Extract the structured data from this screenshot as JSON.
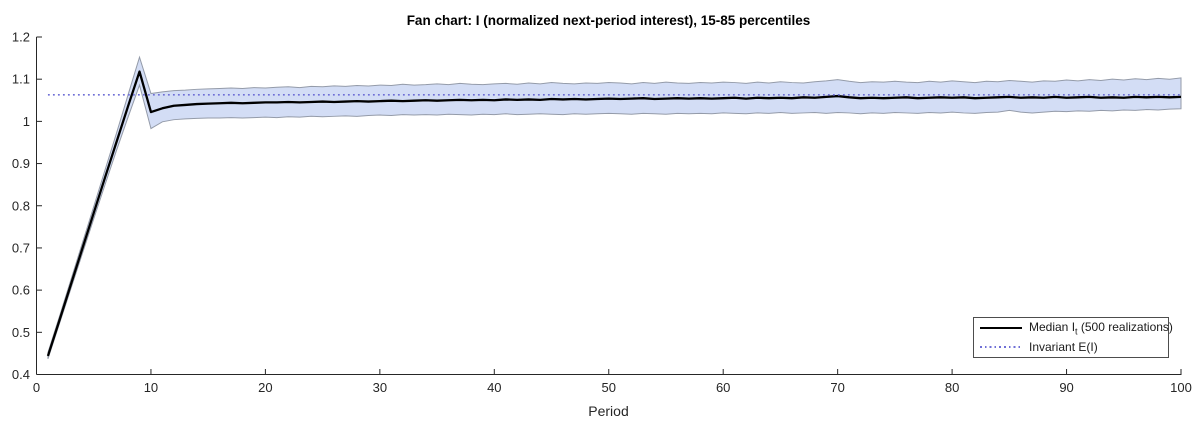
{
  "title": "Fan chart: I (normalized next-period interest), 15-85 percentiles",
  "xlabel": "Period",
  "legend": {
    "median_prefix": "Median I",
    "median_sub": "t",
    "median_suffix": " (500 realizations)",
    "invariant": "Invariant E(I)"
  },
  "colors": {
    "band_fill": "#d3ddf5",
    "band_edge": "#949ba9",
    "median": "#000000",
    "invariant": "#6f6fd6",
    "axis": "#262626",
    "tick_text": "#262626"
  },
  "chart_data": {
    "type": "line",
    "title": "Fan chart: I (normalized next-period interest), 15-85 percentiles",
    "xlabel": "Period",
    "ylabel": "",
    "xlim": [
      0,
      100
    ],
    "ylim": [
      0.4,
      1.2
    ],
    "x_ticks": [
      0,
      10,
      20,
      30,
      40,
      50,
      60,
      70,
      80,
      90,
      100
    ],
    "y_ticks": [
      0.4,
      0.5,
      0.6,
      0.7,
      0.8,
      0.9,
      1.0,
      1.1,
      1.2
    ],
    "y_tick_labels": [
      "0.4",
      "0.5",
      "0.6",
      "0.7",
      "0.8",
      "0.9",
      "1",
      "1.1",
      "1.2"
    ],
    "grid": false,
    "legend_position": "lower right",
    "invariant_EI": 1.063,
    "x": [
      1,
      2,
      3,
      4,
      5,
      6,
      7,
      8,
      9,
      10,
      11,
      12,
      13,
      14,
      15,
      16,
      17,
      18,
      19,
      20,
      21,
      22,
      23,
      24,
      25,
      26,
      27,
      28,
      29,
      30,
      31,
      32,
      33,
      34,
      35,
      36,
      37,
      38,
      39,
      40,
      41,
      42,
      43,
      44,
      45,
      46,
      47,
      48,
      49,
      50,
      51,
      52,
      53,
      54,
      55,
      56,
      57,
      58,
      59,
      60,
      61,
      62,
      63,
      64,
      65,
      66,
      67,
      68,
      69,
      70,
      71,
      72,
      73,
      74,
      75,
      76,
      77,
      78,
      79,
      80,
      81,
      82,
      83,
      84,
      85,
      86,
      87,
      88,
      89,
      90,
      91,
      92,
      93,
      94,
      95,
      96,
      97,
      98,
      99,
      100
    ],
    "series": [
      {
        "name": "Median I_t (500 realizations)",
        "values": [
          0.444,
          0.528,
          0.613,
          0.698,
          0.783,
          0.868,
          0.952,
          1.036,
          1.118,
          1.022,
          1.031,
          1.037,
          1.039,
          1.041,
          1.042,
          1.043,
          1.044,
          1.043,
          1.044,
          1.045,
          1.045,
          1.046,
          1.045,
          1.046,
          1.047,
          1.046,
          1.047,
          1.048,
          1.047,
          1.048,
          1.049,
          1.048,
          1.049,
          1.05,
          1.049,
          1.05,
          1.051,
          1.05,
          1.051,
          1.05,
          1.052,
          1.051,
          1.052,
          1.051,
          1.053,
          1.052,
          1.053,
          1.052,
          1.053,
          1.054,
          1.053,
          1.054,
          1.055,
          1.053,
          1.054,
          1.055,
          1.054,
          1.055,
          1.054,
          1.055,
          1.056,
          1.054,
          1.056,
          1.055,
          1.056,
          1.055,
          1.057,
          1.056,
          1.058,
          1.06,
          1.057,
          1.055,
          1.056,
          1.055,
          1.056,
          1.057,
          1.055,
          1.056,
          1.057,
          1.056,
          1.057,
          1.055,
          1.056,
          1.057,
          1.058,
          1.056,
          1.057,
          1.056,
          1.058,
          1.056,
          1.057,
          1.058,
          1.056,
          1.057,
          1.056,
          1.058,
          1.057,
          1.058,
          1.057,
          1.058
        ]
      },
      {
        "name": "15th percentile",
        "values": [
          0.437,
          0.52,
          0.603,
          0.686,
          0.769,
          0.851,
          0.932,
          1.01,
          1.086,
          0.983,
          0.999,
          1.004,
          1.006,
          1.007,
          1.008,
          1.008,
          1.009,
          1.008,
          1.009,
          1.01,
          1.009,
          1.011,
          1.01,
          1.012,
          1.011,
          1.012,
          1.013,
          1.012,
          1.014,
          1.015,
          1.014,
          1.016,
          1.015,
          1.016,
          1.015,
          1.017,
          1.016,
          1.015,
          1.017,
          1.016,
          1.018,
          1.016,
          1.017,
          1.018,
          1.017,
          1.016,
          1.018,
          1.017,
          1.018,
          1.019,
          1.018,
          1.017,
          1.019,
          1.018,
          1.017,
          1.019,
          1.018,
          1.019,
          1.018,
          1.02,
          1.019,
          1.018,
          1.02,
          1.019,
          1.021,
          1.019,
          1.02,
          1.021,
          1.019,
          1.021,
          1.02,
          1.018,
          1.02,
          1.019,
          1.021,
          1.02,
          1.019,
          1.021,
          1.02,
          1.022,
          1.02,
          1.019,
          1.021,
          1.022,
          1.026,
          1.022,
          1.02,
          1.022,
          1.024,
          1.023,
          1.025,
          1.024,
          1.026,
          1.025,
          1.027,
          1.026,
          1.028,
          1.027,
          1.029,
          1.03
        ]
      },
      {
        "name": "85th percentile",
        "values": [
          0.452,
          0.537,
          0.624,
          0.711,
          0.798,
          0.886,
          0.973,
          1.063,
          1.152,
          1.066,
          1.07,
          1.073,
          1.074,
          1.076,
          1.077,
          1.078,
          1.079,
          1.078,
          1.08,
          1.079,
          1.081,
          1.082,
          1.08,
          1.083,
          1.082,
          1.084,
          1.083,
          1.085,
          1.084,
          1.086,
          1.085,
          1.088,
          1.086,
          1.087,
          1.089,
          1.087,
          1.09,
          1.088,
          1.087,
          1.089,
          1.09,
          1.088,
          1.091,
          1.089,
          1.092,
          1.09,
          1.089,
          1.091,
          1.09,
          1.092,
          1.091,
          1.089,
          1.092,
          1.09,
          1.093,
          1.091,
          1.09,
          1.092,
          1.091,
          1.093,
          1.092,
          1.09,
          1.093,
          1.091,
          1.094,
          1.092,
          1.091,
          1.094,
          1.096,
          1.099,
          1.095,
          1.092,
          1.094,
          1.093,
          1.095,
          1.093,
          1.092,
          1.095,
          1.093,
          1.096,
          1.094,
          1.092,
          1.095,
          1.094,
          1.097,
          1.095,
          1.093,
          1.096,
          1.095,
          1.098,
          1.096,
          1.099,
          1.097,
          1.1,
          1.098,
          1.101,
          1.099,
          1.102,
          1.1,
          1.103
        ]
      }
    ]
  }
}
